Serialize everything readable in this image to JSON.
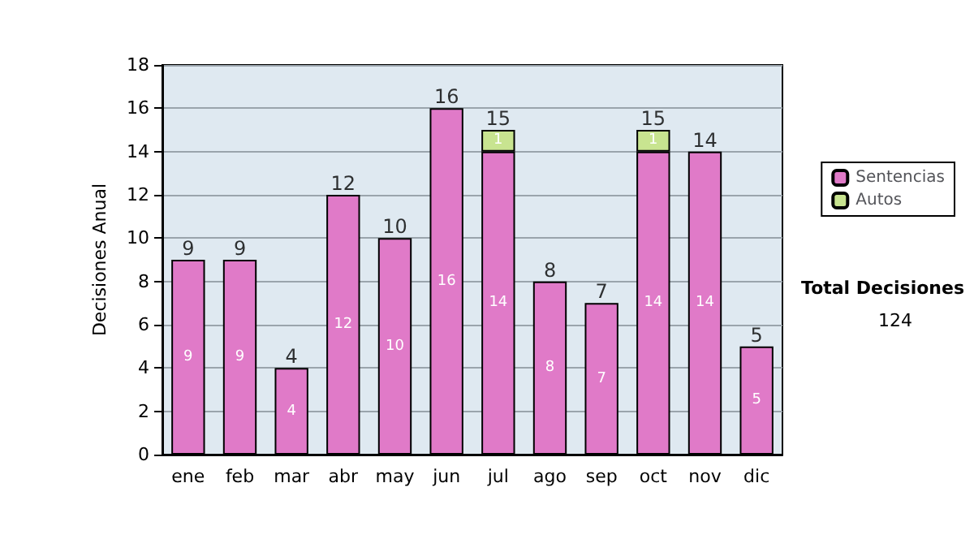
{
  "chart_data": {
    "type": "bar",
    "ylabel": "Decisiones Anual",
    "stacked": true,
    "categories": [
      "ene",
      "feb",
      "mar",
      "abr",
      "may",
      "jun",
      "jul",
      "ago",
      "sep",
      "oct",
      "nov",
      "dic"
    ],
    "series": [
      {
        "name": "Sentencias",
        "color": "#e07ac8",
        "values": [
          9,
          9,
          4,
          12,
          10,
          16,
          14,
          8,
          7,
          14,
          14,
          5
        ],
        "value_labels": [
          "9",
          "9",
          "4",
          "12",
          "10",
          "16",
          "14",
          "8",
          "7",
          "14",
          "14",
          "5"
        ]
      },
      {
        "name": "Autos",
        "color": "#c8e490",
        "values": [
          0,
          0,
          0,
          0,
          0,
          0,
          1,
          0,
          0,
          1,
          0,
          0
        ],
        "value_labels": [
          null,
          null,
          null,
          null,
          null,
          null,
          "1",
          null,
          null,
          "1",
          null,
          null
        ]
      }
    ],
    "totals": [
      "9",
      "9",
      "4",
      "12",
      "10",
      "16",
      "15",
      "8",
      "7",
      "15",
      "14",
      "5"
    ],
    "ylim": [
      0,
      18
    ],
    "yticks": [
      0,
      2,
      4,
      6,
      8,
      10,
      12,
      14,
      16,
      18
    ],
    "grid": "y",
    "legend": "right",
    "annotations": [
      "Total Decisiones",
      "124"
    ]
  }
}
